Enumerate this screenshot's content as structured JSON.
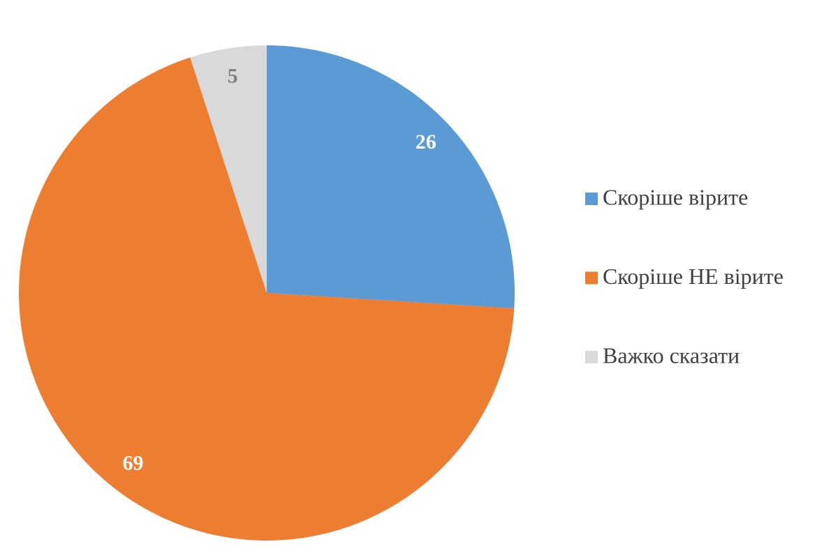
{
  "chart_data": {
    "type": "pie",
    "categories": [
      "Скоріше вірите",
      "Скоріше НЕ вірите",
      "Важко сказати"
    ],
    "values": [
      26,
      69,
      5
    ],
    "colors": [
      "#5b9bd5",
      "#ed7d31",
      "#d9d9d9"
    ],
    "label_colors": [
      "#ffffff",
      "#ffffff",
      "#7f7f7f"
    ],
    "legend": "right"
  }
}
